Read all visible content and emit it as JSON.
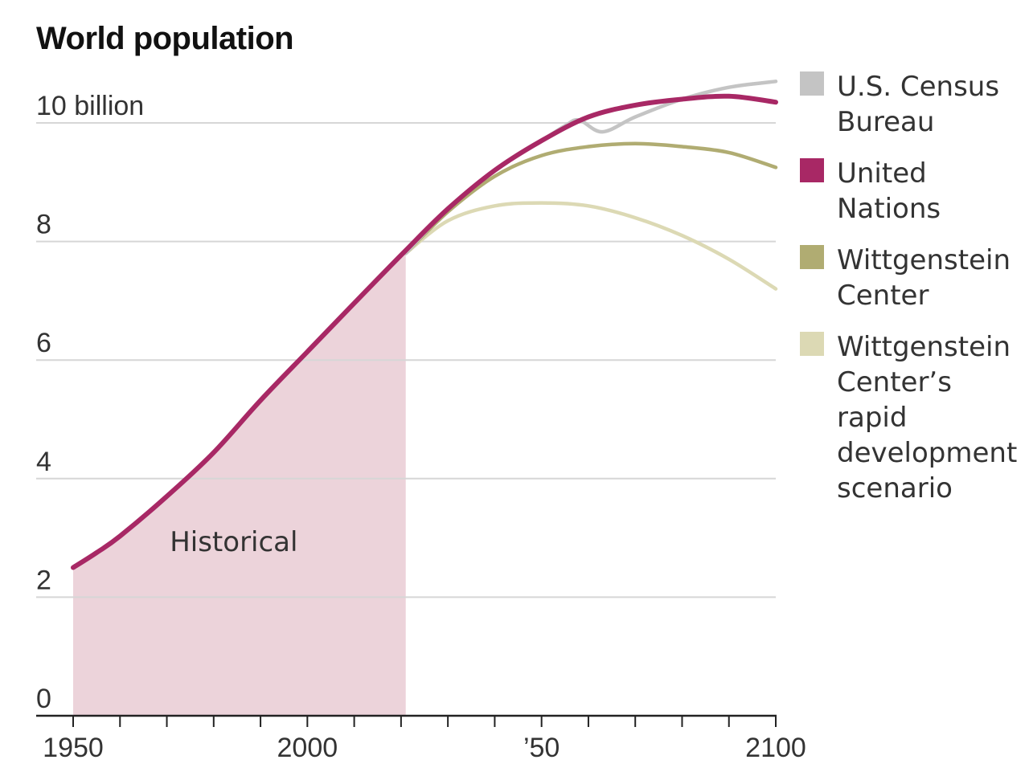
{
  "chart_data": {
    "type": "area",
    "title": "World population",
    "annotation": "Historical",
    "xlim": [
      1950,
      2100
    ],
    "ylim": [
      0,
      10
    ],
    "x_ticks": [
      1950,
      1960,
      1970,
      1980,
      1990,
      2000,
      2010,
      2020,
      2030,
      2040,
      2050,
      2060,
      2070,
      2080,
      2090,
      2100
    ],
    "x_tick_labels": [
      {
        "x": 1950,
        "label": "1950"
      },
      {
        "x": 2000,
        "label": "2000"
      },
      {
        "x": 2050,
        "label": "’50"
      },
      {
        "x": 2100,
        "label": "2100"
      }
    ],
    "y_ticks": [
      0,
      2,
      4,
      6,
      8,
      10
    ],
    "y_tick_labels": [
      "0",
      "2",
      "4",
      "6",
      "8",
      "10 billion"
    ],
    "historical_range": [
      1950,
      2021
    ],
    "legend_position": "right",
    "series": [
      {
        "name": "U.S. Census Bureau",
        "color": "#c4c4c4",
        "x": [
          2021,
          2030,
          2040,
          2050,
          2055,
          2058,
          2063,
          2070,
          2080,
          2090,
          2100
        ],
        "y": [
          7.8,
          8.55,
          9.2,
          9.7,
          9.95,
          10.05,
          9.85,
          10.1,
          10.4,
          10.6,
          10.7
        ]
      },
      {
        "name": "United Nations",
        "color": "#a82865",
        "x": [
          1950,
          1955,
          1960,
          1970,
          1980,
          1990,
          2000,
          2010,
          2021,
          2030,
          2040,
          2050,
          2060,
          2070,
          2080,
          2090,
          2100
        ],
        "y": [
          2.5,
          2.75,
          3.03,
          3.7,
          4.44,
          5.32,
          6.14,
          6.96,
          7.85,
          8.55,
          9.2,
          9.7,
          10.1,
          10.3,
          10.4,
          10.45,
          10.35
        ]
      },
      {
        "name": "Wittgenstein Center",
        "color": "#b0ac72",
        "x": [
          2021,
          2030,
          2040,
          2050,
          2060,
          2070,
          2080,
          2090,
          2100
        ],
        "y": [
          7.8,
          8.5,
          9.1,
          9.45,
          9.6,
          9.65,
          9.6,
          9.5,
          9.25
        ]
      },
      {
        "name": "Wittgenstein Center’s rapid development scenario",
        "color": "#dcd9b4",
        "x": [
          2021,
          2030,
          2040,
          2050,
          2060,
          2070,
          2080,
          2090,
          2100
        ],
        "y": [
          7.8,
          8.35,
          8.6,
          8.65,
          8.6,
          8.4,
          8.1,
          7.7,
          7.2
        ]
      }
    ],
    "legend": [
      {
        "lines": [
          "U.S. Census",
          "Bureau"
        ],
        "color": "#c4c4c4"
      },
      {
        "lines": [
          "United",
          "Nations"
        ],
        "color": "#a82865"
      },
      {
        "lines": [
          "Wittgenstein",
          "Center"
        ],
        "color": "#b0ac72"
      },
      {
        "lines": [
          "Wittgenstein",
          "Center’s rapid",
          "development",
          "scenario"
        ],
        "color": "#dcd9b4"
      }
    ],
    "colors": {
      "historical_fill": "#ecd3da",
      "gridline": "#d6d6d6",
      "axis": "#222222"
    }
  }
}
